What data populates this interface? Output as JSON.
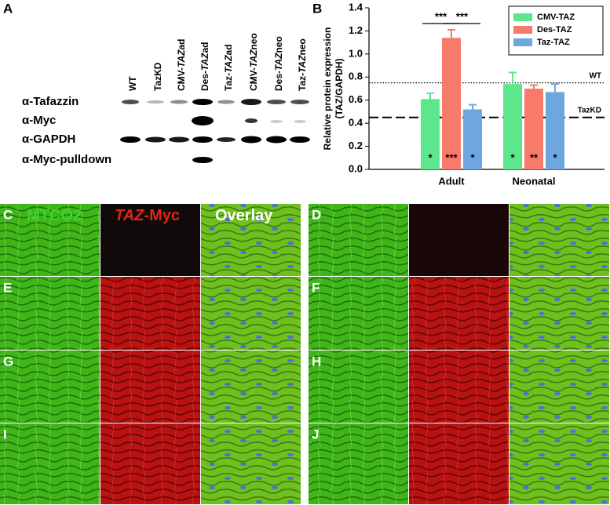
{
  "panel_labels": [
    "A",
    "B"
  ],
  "blot": {
    "lanes": [
      [
        "WT"
      ],
      [
        "TazKD"
      ],
      [
        "CMV-",
        "TAZ",
        "ad"
      ],
      [
        "Des-",
        "TAZ",
        "ad"
      ],
      [
        "Taz-",
        "TAZ",
        "ad"
      ],
      [
        "CMV-",
        "TAZ",
        "neo"
      ],
      [
        "Des-",
        "TAZ",
        "neo"
      ],
      [
        "Taz-",
        "TAZ",
        "neo"
      ]
    ],
    "rows": [
      "α-Tafazzin",
      "α-Myc",
      "α-GAPDH",
      "α-Myc-pulldown"
    ]
  },
  "chart_data": {
    "type": "bar",
    "y_label": [
      "Relative protein expression",
      "(TAZ/GAPDH)"
    ],
    "categories": [
      "Adult",
      "Neonatal"
    ],
    "series": [
      {
        "name": "CMV-TAZ",
        "color": "#5ee68c",
        "values": [
          0.61,
          0.74
        ],
        "errors": [
          0.05,
          0.1
        ],
        "stars": [
          "*",
          "*"
        ]
      },
      {
        "name": "Des-TAZ",
        "color": "#f87a6a",
        "values": [
          1.14,
          0.7
        ],
        "errors": [
          0.07,
          0.03
        ],
        "stars": [
          "***",
          "**"
        ]
      },
      {
        "name": "Taz-TAZ",
        "color": "#6ea6e0",
        "values": [
          0.52,
          0.67
        ],
        "errors": [
          0.04,
          0.07
        ],
        "stars": [
          "*",
          "*"
        ]
      }
    ],
    "bracket_labels": [
      "***",
      "***"
    ],
    "reference_lines": [
      {
        "value": 0.75,
        "label": "WT",
        "style": "dotted"
      },
      {
        "value": 0.45,
        "label": "TazKD",
        "style": "dashed"
      }
    ],
    "ylim": [
      0,
      1.4
    ],
    "yticks": [
      {
        "value": 0,
        "label": "0.0"
      },
      0.2,
      0.4,
      0.6,
      0.8,
      {
        "value": 1,
        "label": "1.0"
      },
      1.2,
      1.4
    ],
    "legend": "top-right"
  },
  "micrographs": {
    "columns": [
      [
        "MTCO2"
      ],
      [
        "",
        "TAZ",
        "-Myc"
      ],
      [
        "Overlay"
      ]
    ],
    "panels": [
      "C",
      "D",
      "E",
      "F",
      "G",
      "H",
      "I",
      "J"
    ]
  }
}
